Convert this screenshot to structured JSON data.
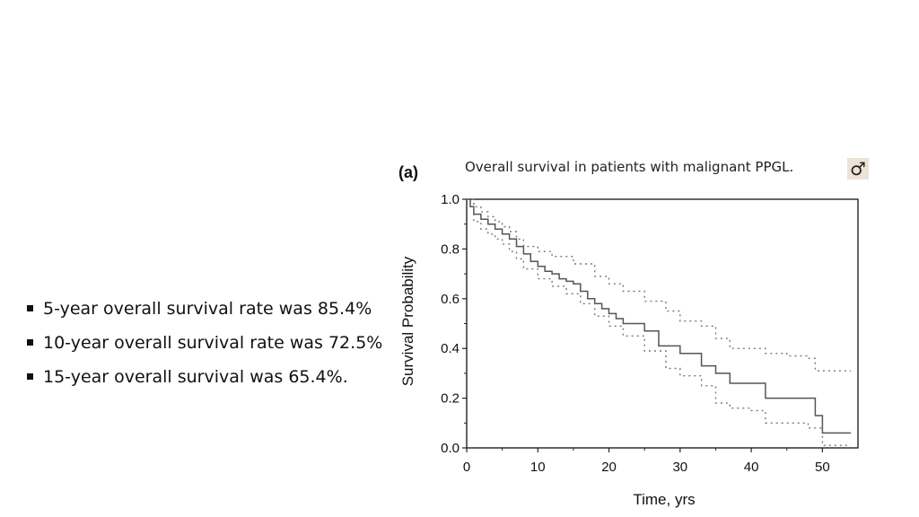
{
  "bullets": [
    "5-year overall survival rate was 85.4%",
    "10-year overall survival rate was 72.5%",
    "15-year overall survival was 65.4%."
  ],
  "figure": {
    "panel_label": "(a)",
    "icon": "male-symbol-icon",
    "icon_glyph": "♂"
  },
  "chart_data": {
    "type": "line",
    "title": "Overall survival in patients with malignant PPGL.",
    "xlabel": "Time, yrs",
    "ylabel": "Survival Probability",
    "xlim": [
      0,
      55
    ],
    "ylim": [
      0,
      1.0
    ],
    "x_ticks": [
      "0",
      "10",
      "20",
      "30",
      "40",
      "50"
    ],
    "y_ticks": [
      "0.0",
      "0.2",
      "0.4",
      "0.6",
      "0.8",
      "1.0"
    ],
    "series": [
      {
        "name": "survival estimate",
        "style": "solid",
        "color": "#555555",
        "points": [
          [
            0,
            1.0
          ],
          [
            0.5,
            0.97
          ],
          [
            1,
            0.94
          ],
          [
            2,
            0.92
          ],
          [
            3,
            0.9
          ],
          [
            4,
            0.88
          ],
          [
            5,
            0.86
          ],
          [
            6,
            0.84
          ],
          [
            7,
            0.81
          ],
          [
            8,
            0.78
          ],
          [
            9,
            0.75
          ],
          [
            10,
            0.73
          ],
          [
            11,
            0.71
          ],
          [
            12,
            0.7
          ],
          [
            13,
            0.68
          ],
          [
            14,
            0.67
          ],
          [
            15,
            0.66
          ],
          [
            16,
            0.63
          ],
          [
            17,
            0.6
          ],
          [
            18,
            0.58
          ],
          [
            19,
            0.56
          ],
          [
            20,
            0.54
          ],
          [
            21,
            0.52
          ],
          [
            22,
            0.5
          ],
          [
            25,
            0.47
          ],
          [
            27,
            0.41
          ],
          [
            30,
            0.38
          ],
          [
            33,
            0.33
          ],
          [
            35,
            0.3
          ],
          [
            37,
            0.26
          ],
          [
            42,
            0.2
          ],
          [
            49,
            0.13
          ],
          [
            50,
            0.06
          ],
          [
            54,
            0.06
          ]
        ]
      },
      {
        "name": "upper 95% CI",
        "style": "dotted",
        "color": "#777777",
        "points": [
          [
            0,
            1.0
          ],
          [
            1,
            0.97
          ],
          [
            2,
            0.95
          ],
          [
            3,
            0.93
          ],
          [
            4,
            0.91
          ],
          [
            5,
            0.89
          ],
          [
            6,
            0.87
          ],
          [
            7,
            0.84
          ],
          [
            8,
            0.81
          ],
          [
            10,
            0.79
          ],
          [
            12,
            0.77
          ],
          [
            15,
            0.74
          ],
          [
            18,
            0.69
          ],
          [
            20,
            0.66
          ],
          [
            22,
            0.63
          ],
          [
            25,
            0.59
          ],
          [
            28,
            0.55
          ],
          [
            30,
            0.51
          ],
          [
            33,
            0.49
          ],
          [
            35,
            0.44
          ],
          [
            37,
            0.4
          ],
          [
            42,
            0.38
          ],
          [
            45,
            0.37
          ],
          [
            48,
            0.36
          ],
          [
            49,
            0.31
          ],
          [
            54,
            0.31
          ]
        ]
      },
      {
        "name": "lower 95% CI",
        "style": "dotted",
        "color": "#777777",
        "points": [
          [
            0,
            1.0
          ],
          [
            1,
            0.91
          ],
          [
            2,
            0.88
          ],
          [
            3,
            0.86
          ],
          [
            4,
            0.84
          ],
          [
            5,
            0.82
          ],
          [
            6,
            0.79
          ],
          [
            7,
            0.76
          ],
          [
            8,
            0.72
          ],
          [
            10,
            0.68
          ],
          [
            12,
            0.65
          ],
          [
            14,
            0.62
          ],
          [
            16,
            0.58
          ],
          [
            18,
            0.53
          ],
          [
            20,
            0.49
          ],
          [
            22,
            0.45
          ],
          [
            25,
            0.39
          ],
          [
            28,
            0.32
          ],
          [
            30,
            0.29
          ],
          [
            33,
            0.25
          ],
          [
            35,
            0.18
          ],
          [
            37,
            0.16
          ],
          [
            40,
            0.15
          ],
          [
            42,
            0.1
          ],
          [
            48,
            0.08
          ],
          [
            50,
            0.01
          ],
          [
            54,
            0.01
          ]
        ]
      }
    ]
  }
}
